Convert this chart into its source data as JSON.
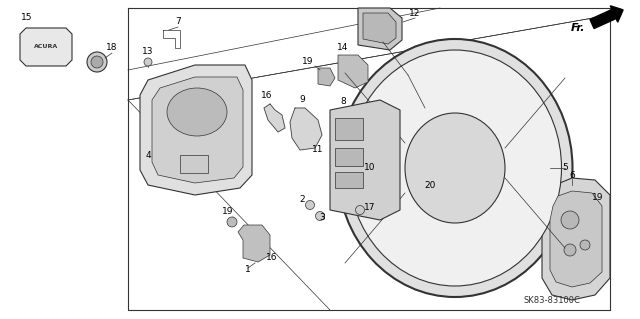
{
  "bg_color": "#ffffff",
  "diagram_code": "SK83-83100C",
  "line_color": "#333333",
  "lw_main": 0.8,
  "lw_thin": 0.5,
  "label_fs": 6.5,
  "code_fs": 6.0,
  "fr_fs": 8.0,
  "fig_w": 6.4,
  "fig_h": 3.19,
  "dpi": 100
}
